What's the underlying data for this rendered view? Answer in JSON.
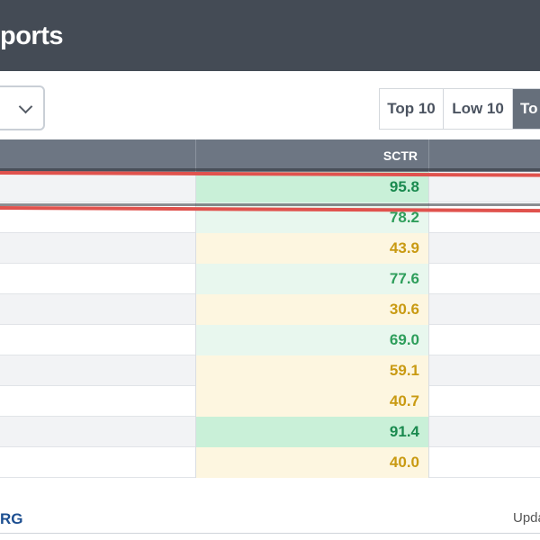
{
  "header": {
    "title": "ports"
  },
  "controls": {
    "dropdown_icon": "chevron-down-icon",
    "buttons": [
      {
        "label": "Top 10"
      },
      {
        "label": "Low 10"
      },
      {
        "label": "To"
      }
    ]
  },
  "table": {
    "columns": [
      "",
      "SCTR",
      ""
    ],
    "rows": [
      {
        "sctr": "95.8",
        "color": "#1a8a4f",
        "bg": "#c9f0d8"
      },
      {
        "sctr": "78.2",
        "color": "#2e9e5b",
        "bg": "#e8f7ee"
      },
      {
        "sctr": "43.9",
        "color": "#c99a12",
        "bg": "#fdf6e0"
      },
      {
        "sctr": "77.6",
        "color": "#2e9e5b",
        "bg": "#e8f7ee"
      },
      {
        "sctr": "30.6",
        "color": "#c99a12",
        "bg": "#fdf6e0"
      },
      {
        "sctr": "69.0",
        "color": "#2e9e5b",
        "bg": "#e8f7ee"
      },
      {
        "sctr": "59.1",
        "color": "#c99a12",
        "bg": "#fdf6e0"
      },
      {
        "sctr": "40.7",
        "color": "#c99a12",
        "bg": "#fdf6e0"
      },
      {
        "sctr": "91.4",
        "color": "#1a8a4f",
        "bg": "#c9f0d8"
      },
      {
        "sctr": "40.0",
        "color": "#c99a12",
        "bg": "#fdf6e0"
      }
    ]
  },
  "footer": {
    "logo": "RG",
    "updated": "Upda"
  },
  "colors": {
    "highlight": "#e0524d",
    "header_bg": "#444b55",
    "table_head_bg": "#6d7683"
  }
}
